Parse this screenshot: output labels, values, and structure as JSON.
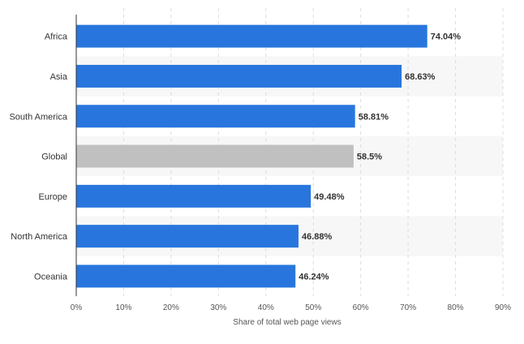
{
  "chart_data": {
    "type": "bar",
    "orientation": "horizontal",
    "categories": [
      "Africa",
      "Asia",
      "South America",
      "Global",
      "Europe",
      "North America",
      "Oceania"
    ],
    "values": [
      74.04,
      68.63,
      58.81,
      58.5,
      49.48,
      46.88,
      46.24
    ],
    "value_labels": [
      "74.04%",
      "68.63%",
      "58.81%",
      "58.5%",
      "49.48%",
      "46.88%",
      "46.24%"
    ],
    "xlabel": "Share of total web page views",
    "ylabel": "",
    "xlim": [
      0,
      90
    ],
    "xticks": [
      0,
      10,
      20,
      30,
      40,
      50,
      60,
      70,
      80,
      90
    ],
    "xtick_labels": [
      "0%",
      "10%",
      "20%",
      "30%",
      "40%",
      "50%",
      "60%",
      "70%",
      "80%",
      "90%"
    ],
    "grid": true,
    "legend": "none",
    "colors": {
      "bar": "#2876dd",
      "highlight_bar": "#c0c0c0",
      "band": "#f7f7f7",
      "grid": "#dcdcdc",
      "axis": "#333333"
    },
    "highlight_category": "Global"
  }
}
